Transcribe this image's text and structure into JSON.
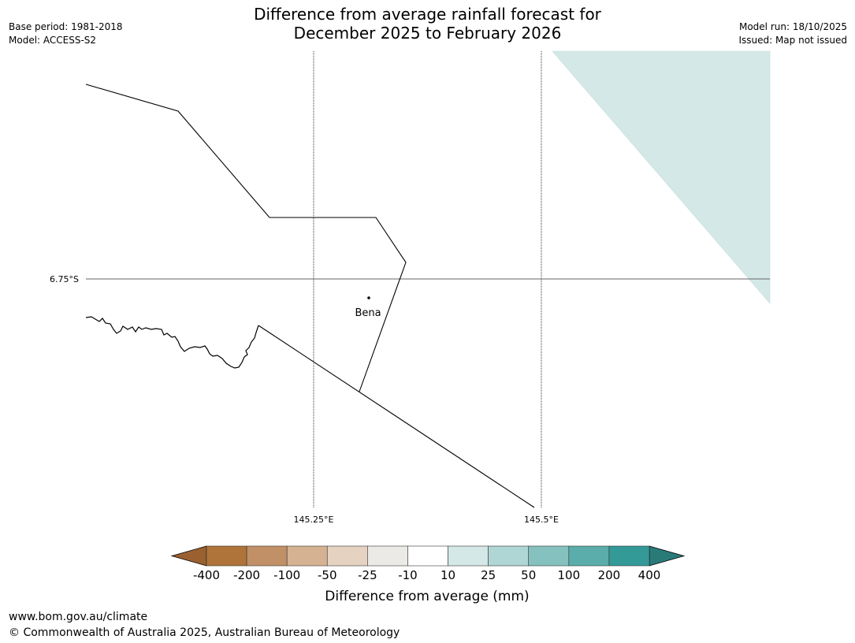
{
  "header": {
    "title_line1": "Difference from average rainfall forecast for",
    "title_line2": "December 2025 to February 2026",
    "base_period": "Base period: 1981-2018",
    "model": "Model: ACCESS-S2",
    "model_run": "Model run: 18/10/2025",
    "issued": "Issued: Map not issued"
  },
  "map": {
    "lat_label": "6.75°S",
    "lon_labels": [
      "145.25°E",
      "145.5°E"
    ],
    "place": "Bena",
    "shaded_category": "10 to 25"
  },
  "colorbar": {
    "title": "Difference from average (mm)",
    "ticks": [
      "-400",
      "-200",
      "-100",
      "-50",
      "-25",
      "-10",
      "10",
      "25",
      "50",
      "100",
      "200",
      "400"
    ],
    "low_extend_color": "#9a6030",
    "high_extend_color": "#2a7a78",
    "colors": [
      "#ae7439",
      "#c29066",
      "#d4b292",
      "#e6d2c1",
      "#eceae6",
      "#ffffff",
      "#d5e8e8",
      "#afd6d5",
      "#85c1bf",
      "#5aadab",
      "#339a98"
    ]
  },
  "footer": {
    "url": "www.bom.gov.au/climate",
    "copyright": "© Commonwealth of Australia 2025, Australian Bureau of Meteorology"
  }
}
